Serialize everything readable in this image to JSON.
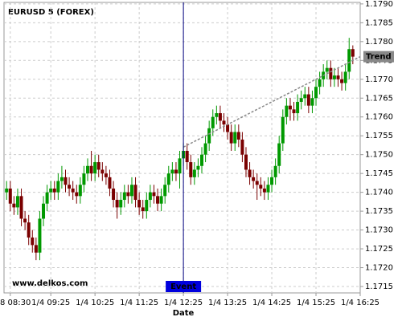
{
  "chart_data": {
    "type": "candlestick",
    "title": "EURUSD 5 (FOREX)",
    "x_label": "Date",
    "watermark": "www.delkos.com",
    "up_color": "#009900",
    "down_color": "#7a0000",
    "grid": true,
    "xlim": [
      -0.7,
      96
    ],
    "ylim": [
      1.17133,
      1.17904
    ],
    "xticks": [
      {
        "value": 1,
        "label": "8 08:30"
      },
      {
        "value": 12,
        "label": "1/4 09:25"
      },
      {
        "value": 24,
        "label": "1/4 10:25"
      },
      {
        "value": 36,
        "label": "1/4 11:25"
      },
      {
        "value": 48,
        "label": "1/4 12:25"
      },
      {
        "value": 60,
        "label": "1/4 13:25"
      },
      {
        "value": 72,
        "label": "1/4 14:25"
      },
      {
        "value": 84,
        "label": "1/4 15:25"
      },
      {
        "value": 96,
        "label": "1/4 16:25"
      }
    ],
    "yticks": [
      {
        "value": 1.1715,
        "label": "1.1715"
      },
      {
        "value": 1.172,
        "label": "1.1720"
      },
      1.1725,
      {
        "value": 1.173,
        "label": "1.1730"
      },
      1.1735,
      {
        "value": 1.174,
        "label": "1.1740"
      },
      1.1745,
      {
        "value": 1.175,
        "label": "1.1750"
      },
      1.1755,
      {
        "value": 1.176,
        "label": "1.1760"
      },
      1.1765,
      {
        "value": 1.177,
        "label": "1.1770"
      },
      1.1775,
      {
        "value": 1.178,
        "label": "1.1780"
      },
      1.1785,
      {
        "value": 1.179,
        "label": "1.1790"
      }
    ],
    "open": [
      1.174,
      1.1741,
      1.1737,
      1.1736,
      1.1739,
      1.1733,
      1.1732,
      1.1728,
      1.1726,
      1.1724,
      1.1733,
      1.1737,
      1.174,
      1.1741,
      1.174,
      1.1743,
      1.1744,
      1.1742,
      1.1741,
      1.174,
      1.1739,
      1.1742,
      1.1745,
      1.1747,
      1.1745,
      1.1748,
      1.1746,
      1.1745,
      1.1744,
      1.1741,
      1.1738,
      1.1736,
      1.1738,
      1.174,
      1.1739,
      1.1742,
      1.1738,
      1.1736,
      1.1735,
      1.1738,
      1.174,
      1.1739,
      1.1737,
      1.1739,
      1.1742,
      1.1745,
      1.1746,
      1.1745,
      1.1749,
      1.1751,
      1.1748,
      1.1744,
      1.1746,
      1.1747,
      1.175,
      1.1753,
      1.1757,
      1.176,
      1.1761,
      1.1759,
      1.1758,
      1.1756,
      1.1753,
      1.1756,
      1.1754,
      1.175,
      1.1746,
      1.1744,
      1.1743,
      1.1742,
      1.1741,
      1.174,
      1.1742,
      1.1744,
      1.1747,
      1.1753,
      1.176,
      1.1763,
      1.1762,
      1.1761,
      1.1764,
      1.1765,
      1.1766,
      1.1763,
      1.1765,
      1.1768,
      1.177,
      1.1772,
      1.1773,
      1.177,
      1.1771,
      1.177,
      1.1769,
      1.1772,
      1.1778
    ],
    "high": [
      1.1743,
      1.1743,
      1.1739,
      1.1741,
      1.1741,
      1.1735,
      1.1734,
      1.173,
      1.1728,
      1.1735,
      1.1739,
      1.1742,
      1.1743,
      1.1743,
      1.1745,
      1.1747,
      1.1746,
      1.1744,
      1.1743,
      1.1742,
      1.1744,
      1.1747,
      1.1749,
      1.1751,
      1.175,
      1.175,
      1.1748,
      1.1747,
      1.1746,
      1.1743,
      1.174,
      1.174,
      1.1742,
      1.1742,
      1.1744,
      1.1744,
      1.174,
      1.1738,
      1.174,
      1.1742,
      1.1742,
      1.1741,
      1.1741,
      1.1744,
      1.1747,
      1.1748,
      1.1748,
      1.1751,
      1.1753,
      1.1753,
      1.175,
      1.1748,
      1.1749,
      1.1752,
      1.1755,
      1.1759,
      1.1762,
      1.1763,
      1.1763,
      1.1761,
      1.176,
      1.1758,
      1.1758,
      1.1758,
      1.1756,
      1.1752,
      1.1748,
      1.1746,
      1.1745,
      1.1744,
      1.1743,
      1.1744,
      1.1746,
      1.1749,
      1.1755,
      1.1762,
      1.1765,
      1.1765,
      1.1764,
      1.1766,
      1.1767,
      1.1768,
      1.1768,
      1.1767,
      1.177,
      1.1772,
      1.1774,
      1.1775,
      1.1775,
      1.1773,
      1.1773,
      1.1772,
      1.1774,
      1.1781,
      1.1779
    ],
    "low": [
      1.1738,
      1.1735,
      1.1734,
      1.1734,
      1.1731,
      1.173,
      1.1726,
      1.1724,
      1.1722,
      1.1722,
      1.1731,
      1.1735,
      1.1738,
      1.1738,
      1.1738,
      1.1741,
      1.174,
      1.1739,
      1.1738,
      1.1737,
      1.1737,
      1.174,
      1.1743,
      1.1743,
      1.1743,
      1.1744,
      1.1743,
      1.1742,
      1.1739,
      1.1736,
      1.1733,
      1.1734,
      1.1736,
      1.1737,
      1.1737,
      1.1736,
      1.1734,
      1.1733,
      1.1733,
      1.1736,
      1.1737,
      1.1735,
      1.1735,
      1.1737,
      1.174,
      1.1743,
      1.1743,
      1.1741,
      1.1747,
      1.1746,
      1.1742,
      1.1742,
      1.1744,
      1.1745,
      1.1748,
      1.1751,
      1.1755,
      1.1758,
      1.1757,
      1.1756,
      1.1754,
      1.1751,
      1.1751,
      1.1752,
      1.1748,
      1.1744,
      1.1742,
      1.1741,
      1.1738,
      1.1739,
      1.1738,
      1.1738,
      1.174,
      1.1742,
      1.1745,
      1.1751,
      1.1758,
      1.1759,
      1.1759,
      1.1759,
      1.1762,
      1.1763,
      1.1761,
      1.1761,
      1.1763,
      1.1766,
      1.1768,
      1.177,
      1.1768,
      1.1768,
      1.1768,
      1.1767,
      1.1767,
      1.177,
      1.1774
    ],
    "close": [
      1.1741,
      1.1737,
      1.1736,
      1.1739,
      1.1733,
      1.1732,
      1.1728,
      1.1726,
      1.1724,
      1.1733,
      1.1737,
      1.174,
      1.1741,
      1.174,
      1.1743,
      1.1744,
      1.1742,
      1.1741,
      1.174,
      1.1739,
      1.1742,
      1.1745,
      1.1747,
      1.1745,
      1.1748,
      1.1746,
      1.1745,
      1.1744,
      1.1741,
      1.1738,
      1.1736,
      1.1738,
      1.174,
      1.1739,
      1.1742,
      1.1738,
      1.1736,
      1.1735,
      1.1738,
      1.174,
      1.1739,
      1.1737,
      1.1739,
      1.1742,
      1.1745,
      1.1746,
      1.1745,
      1.1749,
      1.1751,
      1.1748,
      1.1744,
      1.1746,
      1.1747,
      1.175,
      1.1753,
      1.1757,
      1.176,
      1.1761,
      1.1759,
      1.1758,
      1.1756,
      1.1753,
      1.1756,
      1.1754,
      1.175,
      1.1746,
      1.1744,
      1.1743,
      1.1742,
      1.1741,
      1.174,
      1.1742,
      1.1744,
      1.1747,
      1.1753,
      1.176,
      1.1763,
      1.1762,
      1.1761,
      1.1764,
      1.1765,
      1.1766,
      1.1763,
      1.1765,
      1.1768,
      1.177,
      1.1772,
      1.1773,
      1.177,
      1.1771,
      1.177,
      1.1769,
      1.1772,
      1.1778,
      1.1776
    ],
    "trend": {
      "label": "Trend",
      "color": "#888888",
      "x": [
        48,
        96
      ],
      "y": [
        1.1752,
        1.1776
      ]
    },
    "event": {
      "label": "Event",
      "color": "#0000dd",
      "x": 48
    }
  }
}
